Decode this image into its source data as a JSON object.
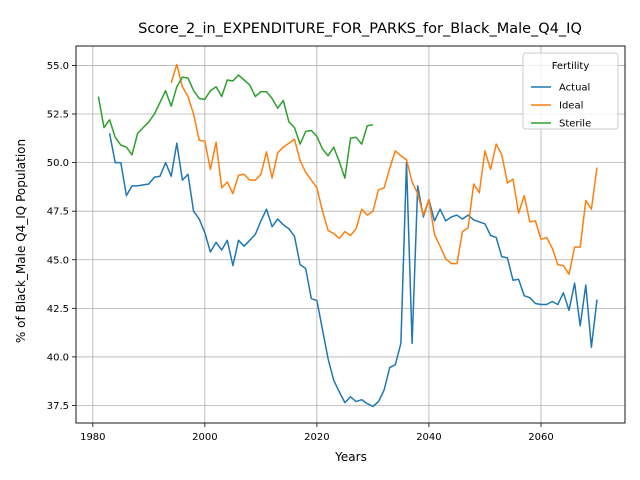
{
  "chart_data": {
    "type": "line",
    "title": "Score_2_in_EXPENDITURE_FOR_PARKS_for_Black_Male_Q4_IQ",
    "xlabel": "Years",
    "ylabel": "% of Black_Male Q4_IQ Population",
    "xlim": [
      1977,
      2075
    ],
    "ylim": [
      36.6,
      56.0
    ],
    "xticks": [
      1980,
      2000,
      2020,
      2040,
      2060
    ],
    "yticks": [
      37.5,
      40.0,
      42.5,
      45.0,
      47.5,
      50.0,
      52.5,
      55.0
    ],
    "grid": true,
    "legend": {
      "title": "Fertility",
      "placement": "top-right"
    },
    "series": [
      {
        "name": "Actual",
        "color": "#1f77b4",
        "x": [
          1983,
          1984,
          1985,
          1986,
          1987,
          1988,
          1989,
          1990,
          1991,
          1992,
          1993,
          1994,
          1995,
          1996,
          1997,
          1998,
          1999,
          2000,
          2001,
          2002,
          2003,
          2004,
          2005,
          2006,
          2007,
          2008,
          2009,
          2010,
          2011,
          2012,
          2013,
          2014,
          2015,
          2016,
          2017,
          2018,
          2019,
          2020,
          2021,
          2022,
          2023,
          2024,
          2025,
          2026,
          2027,
          2028,
          2029,
          2030,
          2031,
          2032,
          2033,
          2034,
          2035,
          2036,
          2037,
          2038,
          2039,
          2040,
          2041,
          2042,
          2043,
          2044,
          2045,
          2046,
          2047,
          2048,
          2049,
          2050,
          2051,
          2052,
          2053,
          2054,
          2055,
          2056,
          2057,
          2058,
          2059,
          2060,
          2061,
          2062,
          2063,
          2064,
          2065,
          2066,
          2067,
          2068,
          2069,
          2070
        ],
        "y": [
          51.5,
          50.0,
          50.0,
          48.3,
          48.8,
          48.8,
          48.85,
          48.9,
          49.25,
          49.3,
          50.0,
          49.3,
          51.0,
          49.1,
          49.4,
          47.5,
          47.1,
          46.4,
          45.4,
          45.9,
          45.5,
          46.0,
          44.7,
          46.0,
          45.7,
          46.0,
          46.3,
          47.0,
          47.6,
          46.7,
          47.1,
          46.8,
          46.6,
          46.2,
          44.75,
          44.55,
          43.0,
          42.9,
          41.4,
          39.9,
          38.8,
          38.2,
          37.65,
          37.95,
          37.7,
          37.8,
          37.6,
          37.45,
          37.7,
          38.3,
          39.45,
          39.6,
          40.7,
          50.0,
          40.7,
          48.8,
          47.2,
          48.1,
          47.0,
          47.6,
          47.0,
          47.2,
          47.3,
          47.1,
          47.3,
          47.05,
          46.95,
          46.85,
          46.25,
          46.15,
          45.15,
          45.1,
          43.95,
          44.0,
          43.15,
          43.05,
          42.75,
          42.7,
          42.7,
          42.85,
          42.7,
          43.3,
          42.4,
          43.8,
          41.6,
          43.7,
          40.5,
          42.95
        ]
      },
      {
        "name": "Ideal",
        "color": "#ff7f0e",
        "x": [
          1994,
          1995,
          1996,
          1997,
          1998,
          1999,
          2000,
          2001,
          2002,
          2003,
          2004,
          2005,
          2006,
          2007,
          2008,
          2009,
          2010,
          2011,
          2012,
          2013,
          2014,
          2015,
          2016,
          2017,
          2018,
          2019,
          2020,
          2021,
          2022,
          2023,
          2024,
          2025,
          2026,
          2027,
          2028,
          2029,
          2030,
          2031,
          2032,
          2033,
          2034,
          2035,
          2036,
          2037,
          2038,
          2039,
          2040,
          2041,
          2042,
          2043,
          2044,
          2045,
          2046,
          2047,
          2048,
          2049,
          2050,
          2051,
          2052,
          2053,
          2054,
          2055,
          2056,
          2057,
          2058,
          2059,
          2060,
          2061,
          2062,
          2063,
          2064,
          2065,
          2066,
          2067,
          2068,
          2069,
          2070
        ],
        "y": [
          54.1,
          55.05,
          53.9,
          53.4,
          52.5,
          51.15,
          51.1,
          49.65,
          51.05,
          48.7,
          49.0,
          48.4,
          49.35,
          49.4,
          49.1,
          49.1,
          49.4,
          50.55,
          49.2,
          50.5,
          50.8,
          51.0,
          51.2,
          50.1,
          49.5,
          49.1,
          48.7,
          47.5,
          46.5,
          46.35,
          46.1,
          46.45,
          46.25,
          46.6,
          47.6,
          47.3,
          47.5,
          48.6,
          48.7,
          49.7,
          50.6,
          50.35,
          50.15,
          49.0,
          48.4,
          47.3,
          48.1,
          46.3,
          45.7,
          45.05,
          44.8,
          44.8,
          46.45,
          46.65,
          48.9,
          48.45,
          50.6,
          49.65,
          50.95,
          50.4,
          48.95,
          49.15,
          47.4,
          48.3,
          46.95,
          47.0,
          46.05,
          46.15,
          45.6,
          44.75,
          44.7,
          44.25,
          45.65,
          45.65,
          48.05,
          47.6,
          49.75
        ]
      },
      {
        "name": "Sterile",
        "color": "#2ca02c",
        "x": [
          1981,
          1982,
          1983,
          1984,
          1985,
          1986,
          1987,
          1988,
          1989,
          1990,
          1991,
          1992,
          1993,
          1994,
          1995,
          1996,
          1997,
          1998,
          1999,
          2000,
          2001,
          2002,
          2003,
          2004,
          2005,
          2006,
          2007,
          2008,
          2009,
          2010,
          2011,
          2012,
          2013,
          2014,
          2015,
          2016,
          2017,
          2018,
          2019,
          2020,
          2021,
          2022,
          2023,
          2024,
          2025,
          2026,
          2027,
          2028,
          2029,
          2030
        ],
        "y": [
          53.4,
          51.8,
          52.2,
          51.3,
          50.9,
          50.8,
          50.4,
          51.5,
          51.8,
          52.1,
          52.5,
          53.1,
          53.7,
          52.9,
          53.9,
          54.4,
          54.35,
          53.7,
          53.3,
          53.25,
          53.7,
          53.9,
          53.4,
          54.25,
          54.2,
          54.5,
          54.25,
          54.0,
          53.4,
          53.65,
          53.65,
          53.3,
          52.8,
          53.2,
          52.1,
          51.8,
          50.95,
          51.6,
          51.65,
          51.35,
          50.7,
          50.35,
          50.8,
          50.05,
          49.2,
          51.25,
          51.3,
          50.95,
          51.9,
          51.95
        ]
      }
    ]
  }
}
